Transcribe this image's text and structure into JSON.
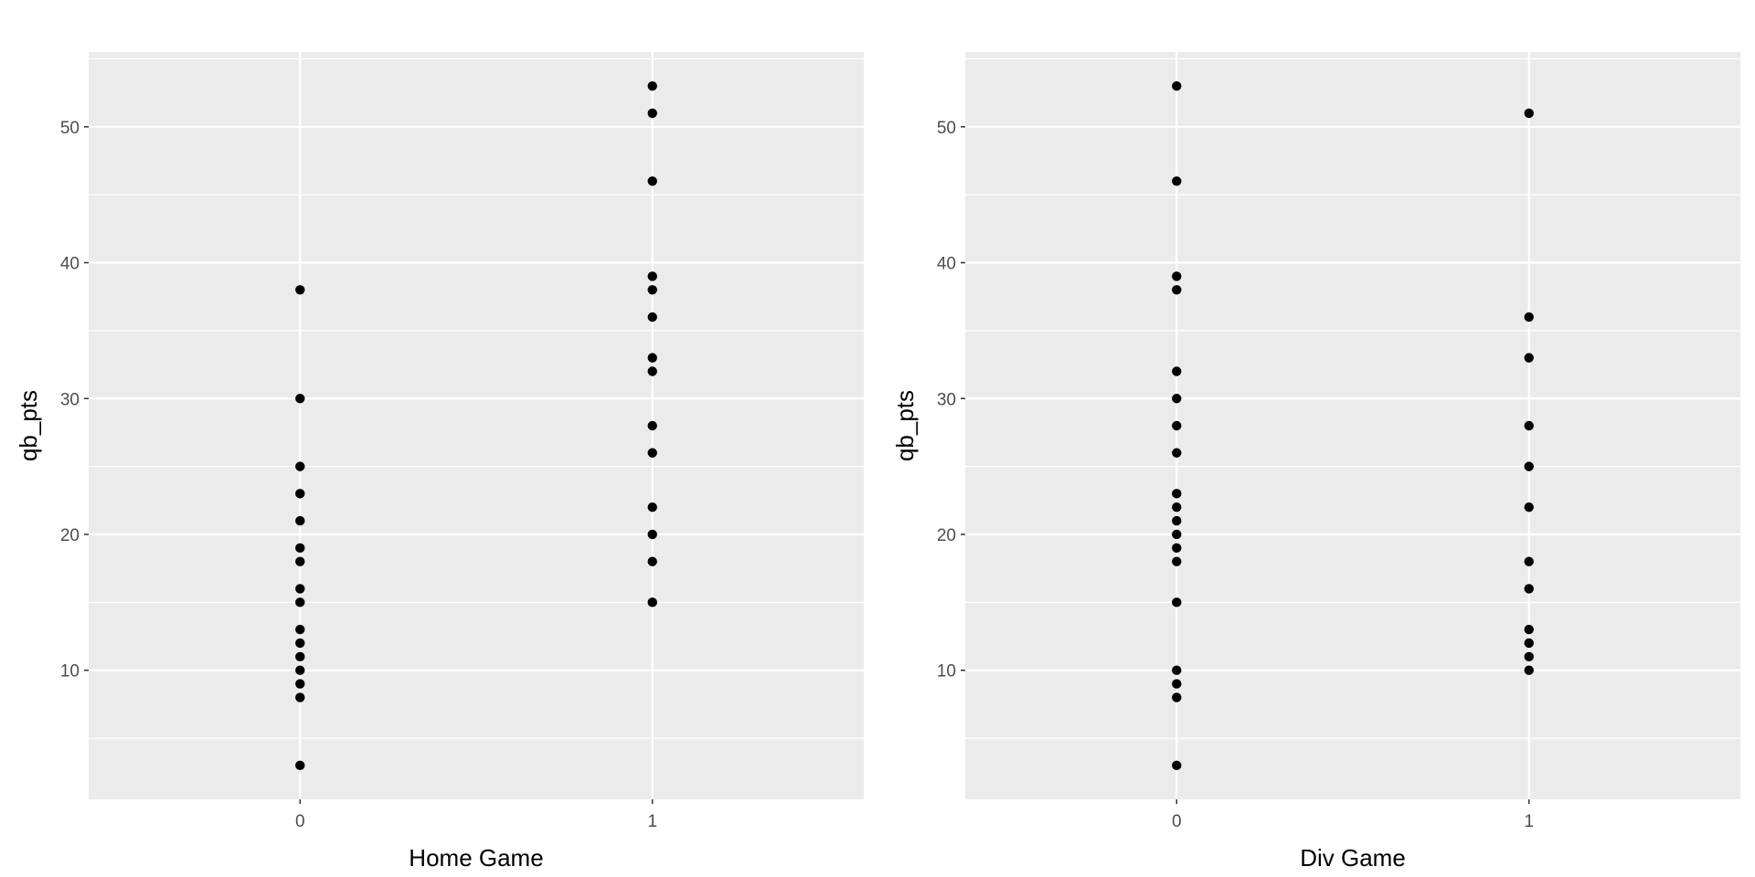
{
  "chart_data": [
    {
      "type": "scatter",
      "title": "",
      "xlabel": "Home Game",
      "ylabel": "qb_pts",
      "x_categories": [
        "0",
        "1"
      ],
      "xlim": [
        -0.6,
        1.6
      ],
      "ylim": [
        0.5,
        55.5
      ],
      "y_ticks": [
        10,
        20,
        30,
        40,
        50
      ],
      "grid": true,
      "points": [
        {
          "x": 0,
          "y": 3
        },
        {
          "x": 0,
          "y": 8
        },
        {
          "x": 0,
          "y": 9
        },
        {
          "x": 0,
          "y": 10
        },
        {
          "x": 0,
          "y": 11
        },
        {
          "x": 0,
          "y": 12
        },
        {
          "x": 0,
          "y": 13
        },
        {
          "x": 0,
          "y": 15
        },
        {
          "x": 0,
          "y": 16
        },
        {
          "x": 0,
          "y": 18
        },
        {
          "x": 0,
          "y": 19
        },
        {
          "x": 0,
          "y": 21
        },
        {
          "x": 0,
          "y": 23
        },
        {
          "x": 0,
          "y": 25
        },
        {
          "x": 0,
          "y": 30
        },
        {
          "x": 0,
          "y": 38
        },
        {
          "x": 1,
          "y": 15
        },
        {
          "x": 1,
          "y": 18
        },
        {
          "x": 1,
          "y": 20
        },
        {
          "x": 1,
          "y": 22
        },
        {
          "x": 1,
          "y": 26
        },
        {
          "x": 1,
          "y": 28
        },
        {
          "x": 1,
          "y": 32
        },
        {
          "x": 1,
          "y": 33
        },
        {
          "x": 1,
          "y": 36
        },
        {
          "x": 1,
          "y": 38
        },
        {
          "x": 1,
          "y": 39
        },
        {
          "x": 1,
          "y": 46
        },
        {
          "x": 1,
          "y": 51
        },
        {
          "x": 1,
          "y": 53
        }
      ]
    },
    {
      "type": "scatter",
      "title": "",
      "xlabel": "Div Game",
      "ylabel": "qb_pts",
      "x_categories": [
        "0",
        "1"
      ],
      "xlim": [
        -0.6,
        1.6
      ],
      "ylim": [
        0.5,
        55.5
      ],
      "y_ticks": [
        10,
        20,
        30,
        40,
        50
      ],
      "grid": true,
      "points": [
        {
          "x": 0,
          "y": 3
        },
        {
          "x": 0,
          "y": 8
        },
        {
          "x": 0,
          "y": 9
        },
        {
          "x": 0,
          "y": 10
        },
        {
          "x": 0,
          "y": 15
        },
        {
          "x": 0,
          "y": 18
        },
        {
          "x": 0,
          "y": 19
        },
        {
          "x": 0,
          "y": 20
        },
        {
          "x": 0,
          "y": 21
        },
        {
          "x": 0,
          "y": 22
        },
        {
          "x": 0,
          "y": 23
        },
        {
          "x": 0,
          "y": 26
        },
        {
          "x": 0,
          "y": 28
        },
        {
          "x": 0,
          "y": 30
        },
        {
          "x": 0,
          "y": 32
        },
        {
          "x": 0,
          "y": 38
        },
        {
          "x": 0,
          "y": 39
        },
        {
          "x": 0,
          "y": 46
        },
        {
          "x": 0,
          "y": 53
        },
        {
          "x": 1,
          "y": 10
        },
        {
          "x": 1,
          "y": 11
        },
        {
          "x": 1,
          "y": 12
        },
        {
          "x": 1,
          "y": 13
        },
        {
          "x": 1,
          "y": 16
        },
        {
          "x": 1,
          "y": 18
        },
        {
          "x": 1,
          "y": 22
        },
        {
          "x": 1,
          "y": 25
        },
        {
          "x": 1,
          "y": 28
        },
        {
          "x": 1,
          "y": 33
        },
        {
          "x": 1,
          "y": 36
        },
        {
          "x": 1,
          "y": 51
        }
      ]
    }
  ],
  "style": {
    "panel_background": "#ebebeb",
    "grid_color": "#ffffff",
    "point_color": "#000000",
    "tick_label_color": "#4d4d4d",
    "axis_title_color": "#000000"
  }
}
